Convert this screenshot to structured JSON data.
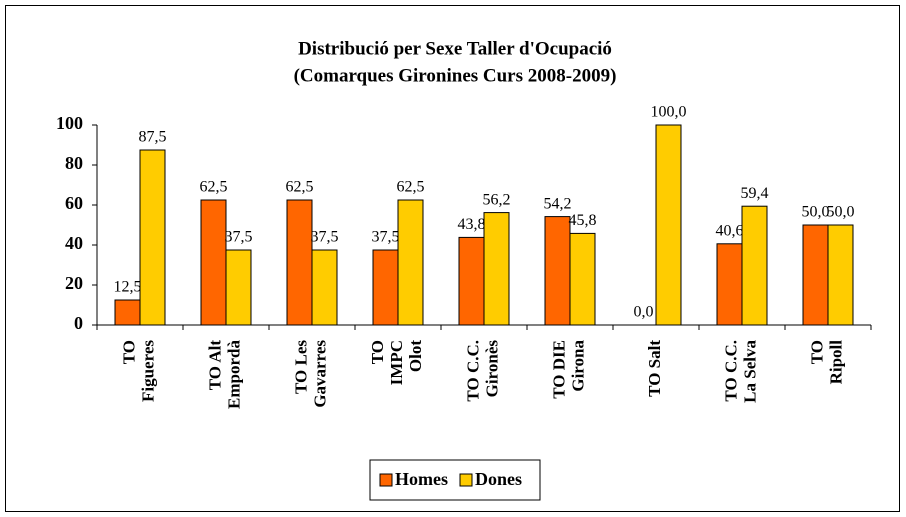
{
  "chart_data": {
    "type": "bar",
    "title": [
      "Distribució per Sexe Taller d'Ocupació",
      "(Comarques Gironines Curs 2008-2009)"
    ],
    "categories": [
      [
        "TO",
        "Figueres"
      ],
      [
        "TO Alt",
        "Empordà"
      ],
      [
        "TO Les",
        "Gavarres"
      ],
      [
        "TO",
        "IMPC",
        "Olot"
      ],
      [
        "TO C.C.",
        "Gironès"
      ],
      [
        "TO DIE",
        "Girona"
      ],
      [
        "TO Salt"
      ],
      [
        "TO C.C.",
        "La Selva"
      ],
      [
        "TO",
        "Ripoll"
      ]
    ],
    "series": [
      {
        "name": "Homes",
        "color": "#ff6600",
        "values": [
          12.5,
          62.5,
          62.5,
          37.5,
          43.8,
          54.2,
          0.0,
          40.6,
          50.0
        ],
        "value_labels": [
          "12,5",
          "62,5",
          "62,5",
          "37,5",
          "43,8",
          "54,2",
          "0,0",
          "40,6",
          "50,0"
        ]
      },
      {
        "name": "Dones",
        "color": "#ffcc00",
        "values": [
          87.5,
          37.5,
          37.5,
          62.5,
          56.2,
          45.8,
          100.0,
          59.4,
          50.0
        ],
        "value_labels": [
          "87,5",
          "37,5",
          "37,5",
          "62,5",
          "56,2",
          "45,8",
          "100,0",
          "59,4",
          "50,0"
        ]
      }
    ],
    "ylim": [
      0,
      100
    ],
    "yticks": [
      0,
      20,
      40,
      60,
      80,
      100
    ],
    "grid": false,
    "legend": "bottom"
  }
}
